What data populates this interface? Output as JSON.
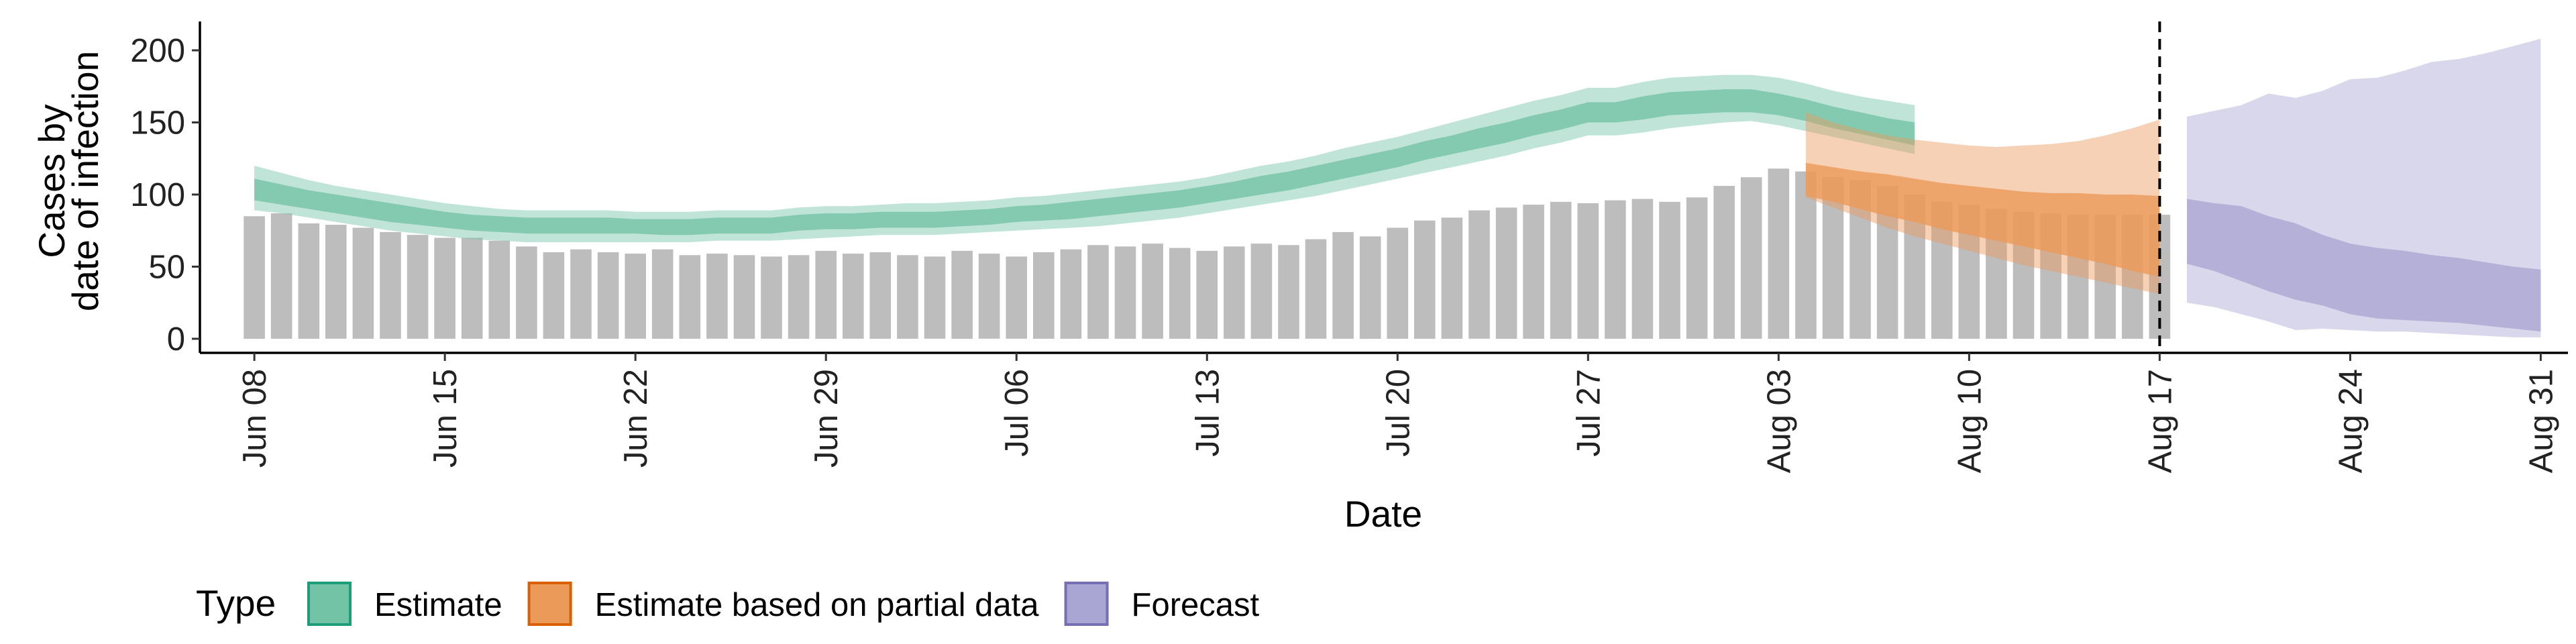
{
  "chart_data": {
    "type": "bar",
    "xlabel": "Date",
    "ylabel_lines": [
      "Cases by",
      "date of infection"
    ],
    "ylim": [
      0,
      220
    ],
    "yticks": [
      0,
      50,
      100,
      150,
      200
    ],
    "xlim": [
      "2020-06-06",
      "2020-09-01"
    ],
    "xticks": [
      {
        "date": "2020-06-08",
        "label": "Jun 08"
      },
      {
        "date": "2020-06-15",
        "label": "Jun 15"
      },
      {
        "date": "2020-06-22",
        "label": "Jun 22"
      },
      {
        "date": "2020-06-29",
        "label": "Jun 29"
      },
      {
        "date": "2020-07-06",
        "label": "Jul 06"
      },
      {
        "date": "2020-07-13",
        "label": "Jul 13"
      },
      {
        "date": "2020-07-20",
        "label": "Jul 20"
      },
      {
        "date": "2020-07-27",
        "label": "Jul 27"
      },
      {
        "date": "2020-08-03",
        "label": "Aug 03"
      },
      {
        "date": "2020-08-10",
        "label": "Aug 10"
      },
      {
        "date": "2020-08-17",
        "label": "Aug 17"
      },
      {
        "date": "2020-08-24",
        "label": "Aug 24"
      },
      {
        "date": "2020-08-31",
        "label": "Aug 31"
      }
    ],
    "grid": false,
    "legend_position": "bottom",
    "legend_title": "Type",
    "legend": [
      {
        "label": "Estimate",
        "fill": "#73c3a6",
        "stroke": "#1b9e77"
      },
      {
        "label": "Estimate based on partial data",
        "fill": "#ec9a5a",
        "stroke": "#d95f02"
      },
      {
        "label": "Forecast",
        "fill": "#aaa6d3",
        "stroke": "#7570b3"
      }
    ],
    "reference_line": {
      "date": "2020-08-17",
      "style": "dashed"
    },
    "bars": {
      "start": "2020-06-08",
      "color": "#bdbdbd",
      "values": [
        85,
        87,
        80,
        79,
        77,
        74,
        72,
        70,
        70,
        68,
        64,
        60,
        62,
        60,
        59,
        62,
        58,
        59,
        58,
        57,
        58,
        61,
        59,
        60,
        58,
        57,
        61,
        59,
        57,
        60,
        62,
        65,
        64,
        66,
        63,
        61,
        64,
        66,
        65,
        69,
        74,
        71,
        77,
        82,
        84,
        89,
        91,
        93,
        95,
        94,
        96,
        97,
        95,
        98,
        106,
        112,
        118,
        116,
        112,
        110,
        106,
        100,
        95,
        93,
        90,
        88,
        87,
        86,
        86,
        86,
        86
      ]
    },
    "series": [
      {
        "name": "Estimate",
        "start": "2020-06-08",
        "median": [
          103,
          100,
          96,
          93,
          90,
          87,
          84,
          82,
          80,
          79,
          78,
          78,
          78,
          78,
          78,
          77,
          77,
          78,
          78,
          78,
          80,
          81,
          81,
          82,
          82,
          82,
          83,
          84,
          86,
          87,
          88,
          90,
          92,
          94,
          96,
          99,
          102,
          106,
          109,
          113,
          117,
          121,
          125,
          130,
          134,
          139,
          143,
          148,
          152,
          157,
          157,
          160,
          163,
          163,
          164,
          164,
          161,
          157,
          152,
          148,
          144,
          141
        ],
        "lower_90": [
          89,
          87,
          84,
          81,
          78,
          75,
          73,
          71,
          69,
          68,
          67,
          67,
          67,
          67,
          67,
          67,
          67,
          68,
          68,
          68,
          69,
          70,
          71,
          72,
          72,
          72,
          73,
          74,
          75,
          76,
          77,
          78,
          80,
          82,
          84,
          87,
          90,
          93,
          96,
          99,
          103,
          107,
          111,
          115,
          119,
          123,
          127,
          132,
          136,
          141,
          141,
          143,
          146,
          148,
          150,
          151,
          148,
          144,
          140,
          136,
          132,
          128
        ],
        "upper_90": [
          120,
          115,
          110,
          106,
          103,
          100,
          97,
          94,
          92,
          90,
          89,
          89,
          89,
          89,
          88,
          88,
          88,
          89,
          89,
          89,
          91,
          92,
          92,
          93,
          94,
          94,
          95,
          96,
          98,
          99,
          101,
          103,
          105,
          107,
          109,
          112,
          116,
          120,
          123,
          127,
          132,
          136,
          140,
          145,
          150,
          155,
          160,
          165,
          169,
          174,
          174,
          178,
          181,
          182,
          183,
          183,
          181,
          177,
          172,
          168,
          165,
          162
        ],
        "lower_50": [
          96,
          93,
          90,
          87,
          84,
          81,
          79,
          77,
          75,
          74,
          73,
          73,
          73,
          73,
          73,
          72,
          72,
          73,
          73,
          73,
          75,
          76,
          76,
          77,
          77,
          77,
          78,
          79,
          81,
          82,
          83,
          85,
          87,
          89,
          91,
          94,
          97,
          100,
          103,
          107,
          111,
          115,
          119,
          124,
          128,
          132,
          136,
          141,
          145,
          150,
          150,
          152,
          155,
          156,
          157,
          157,
          155,
          151,
          146,
          142,
          138,
          134
        ],
        "upper_50": [
          111,
          107,
          103,
          100,
          97,
          94,
          91,
          88,
          86,
          85,
          84,
          84,
          84,
          84,
          83,
          83,
          83,
          84,
          84,
          84,
          86,
          87,
          87,
          88,
          88,
          88,
          89,
          90,
          92,
          93,
          95,
          97,
          99,
          101,
          103,
          106,
          109,
          113,
          116,
          120,
          124,
          128,
          132,
          137,
          141,
          146,
          150,
          155,
          159,
          164,
          164,
          168,
          171,
          172,
          173,
          173,
          170,
          166,
          161,
          157,
          153,
          150
        ]
      },
      {
        "name": "Estimate based on partial data",
        "start": "2020-08-04",
        "median": [
          105,
          101,
          97,
          93,
          89,
          85,
          82,
          79,
          76,
          73,
          69,
          66,
          62,
          58
        ],
        "lower_90": [
          98,
          91,
          84,
          77,
          71,
          66,
          61,
          56,
          51,
          47,
          43,
          39,
          35,
          31
        ],
        "upper_90": [
          157,
          150,
          145,
          141,
          138,
          136,
          134,
          133,
          134,
          135,
          137,
          141,
          146,
          152
        ],
        "lower_50": [
          99,
          95,
          90,
          85,
          81,
          76,
          72,
          68,
          64,
          60,
          56,
          52,
          47,
          43
        ],
        "upper_50": [
          122,
          119,
          116,
          114,
          111,
          108,
          106,
          104,
          102,
          101,
          101,
          100,
          100,
          99
        ]
      },
      {
        "name": "Forecast",
        "start": "2020-08-18",
        "median": [
          75,
          73,
          70,
          66,
          61,
          57,
          52,
          49,
          46,
          43,
          40,
          37,
          33,
          30
        ],
        "lower_90": [
          25,
          22,
          17,
          12,
          6,
          7,
          6,
          5,
          5,
          4,
          3,
          2,
          1,
          1
        ],
        "upper_90": [
          154,
          158,
          162,
          170,
          167,
          172,
          180,
          181,
          186,
          192,
          194,
          198,
          203,
          208
        ],
        "lower_50": [
          52,
          47,
          40,
          33,
          27,
          23,
          17,
          14,
          13,
          12,
          11,
          9,
          7,
          5
        ],
        "upper_50": [
          97,
          94,
          92,
          85,
          80,
          72,
          66,
          63,
          61,
          58,
          56,
          53,
          50,
          48
        ]
      }
    ]
  }
}
